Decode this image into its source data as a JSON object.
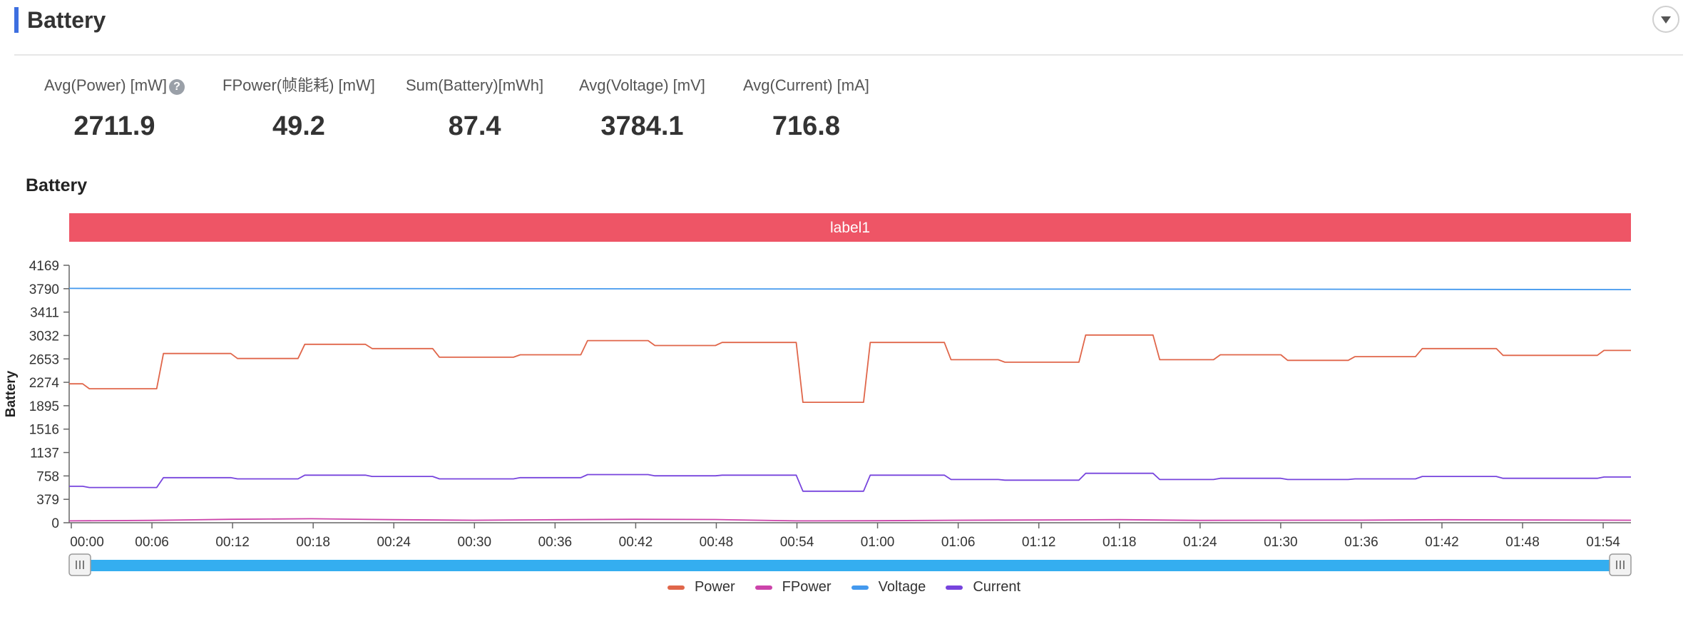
{
  "header": {
    "title": "Battery",
    "accent_color": "#3d6fe0",
    "collapse_icon": "chevron-down-icon"
  },
  "stats": [
    {
      "label": "Avg(Power) [mW]",
      "value": "2711.9",
      "help_icon": "help-icon",
      "help_glyph": "?"
    },
    {
      "label": "FPower(帧能耗) [mW]",
      "value": "49.2"
    },
    {
      "label": "Sum(Battery)[mWh]",
      "value": "87.4"
    },
    {
      "label": "Avg(Voltage) [mV]",
      "value": "3784.1"
    },
    {
      "label": "Avg(Current) [mA]",
      "value": "716.8"
    }
  ],
  "chart_data": {
    "type": "line",
    "title": "Battery",
    "ylabel": "Battery",
    "xlabel": "",
    "band_label": "label1",
    "band_color": "#ee5566",
    "ylim": [
      0,
      4169
    ],
    "yticks": [
      0,
      379,
      758,
      1137,
      1516,
      1895,
      2274,
      2653,
      3032,
      3411,
      3790,
      4169
    ],
    "xticks": [
      "00:00",
      "00:06",
      "00:12",
      "00:18",
      "00:24",
      "00:30",
      "00:36",
      "00:42",
      "00:48",
      "00:54",
      "01:00",
      "01:06",
      "01:12",
      "01:18",
      "01:24",
      "01:30",
      "01:36",
      "01:42",
      "01:48",
      "01:54"
    ],
    "xlim_min": [
      0,
      116
    ],
    "grid": false,
    "legend_position": "bottom-center",
    "series": [
      {
        "name": "Power",
        "color": "#e0664a",
        "x": [
          0,
          1,
          1.5,
          6.5,
          7,
          12,
          12.5,
          17,
          17.5,
          22,
          22.5,
          27,
          27.5,
          33,
          33.5,
          38,
          38.5,
          43,
          43.5,
          48,
          48.5,
          54,
          54.5,
          59,
          59.5,
          65,
          65.5,
          69,
          69.5,
          75,
          75.5,
          80.5,
          81,
          85,
          85.5,
          90,
          90.5,
          95,
          95.5,
          100,
          100.5,
          106,
          106.5,
          111,
          111.5,
          113.5,
          114,
          116
        ],
        "y": [
          2250,
          2250,
          2170,
          2170,
          2740,
          2740,
          2660,
          2660,
          2890,
          2890,
          2820,
          2820,
          2680,
          2680,
          2720,
          2720,
          2950,
          2950,
          2870,
          2870,
          2920,
          2920,
          1950,
          1950,
          2920,
          2920,
          2640,
          2640,
          2600,
          2600,
          3040,
          3040,
          2640,
          2640,
          2720,
          2720,
          2630,
          2630,
          2690,
          2690,
          2820,
          2820,
          2710,
          2710,
          2710,
          2710,
          2790,
          2790
        ]
      },
      {
        "name": "FPower",
        "color": "#cc44aa",
        "x": [
          0,
          6,
          12,
          18,
          24,
          30,
          36,
          42,
          48,
          54,
          60,
          66,
          72,
          78,
          84,
          90,
          96,
          102,
          108,
          116
        ],
        "y": [
          30,
          38,
          55,
          65,
          50,
          40,
          48,
          55,
          52,
          30,
          32,
          40,
          45,
          50,
          38,
          40,
          42,
          48,
          45,
          40
        ]
      },
      {
        "name": "Voltage",
        "color": "#4499ee",
        "x": [
          0,
          30,
          60,
          90,
          116
        ],
        "y": [
          3795,
          3790,
          3785,
          3782,
          3775
        ]
      },
      {
        "name": "Current",
        "color": "#7744dd",
        "x": [
          0,
          1,
          1.5,
          6.5,
          7,
          12,
          12.5,
          17,
          17.5,
          22,
          22.5,
          27,
          27.5,
          33,
          33.5,
          38,
          38.5,
          43,
          43.5,
          48,
          48.5,
          54,
          54.5,
          59,
          59.5,
          65,
          65.5,
          69,
          69.5,
          75,
          75.5,
          80.5,
          81,
          85,
          85.5,
          90,
          90.5,
          95,
          95.5,
          100,
          100.5,
          106,
          106.5,
          111,
          111.5,
          113.5,
          114,
          116
        ],
        "y": [
          590,
          590,
          570,
          570,
          730,
          730,
          710,
          710,
          770,
          770,
          750,
          750,
          710,
          710,
          730,
          730,
          780,
          780,
          760,
          760,
          770,
          770,
          510,
          510,
          770,
          770,
          700,
          700,
          690,
          690,
          800,
          800,
          700,
          700,
          720,
          720,
          700,
          700,
          710,
          710,
          750,
          750,
          720,
          720,
          720,
          720,
          740,
          740
        ]
      }
    ]
  }
}
